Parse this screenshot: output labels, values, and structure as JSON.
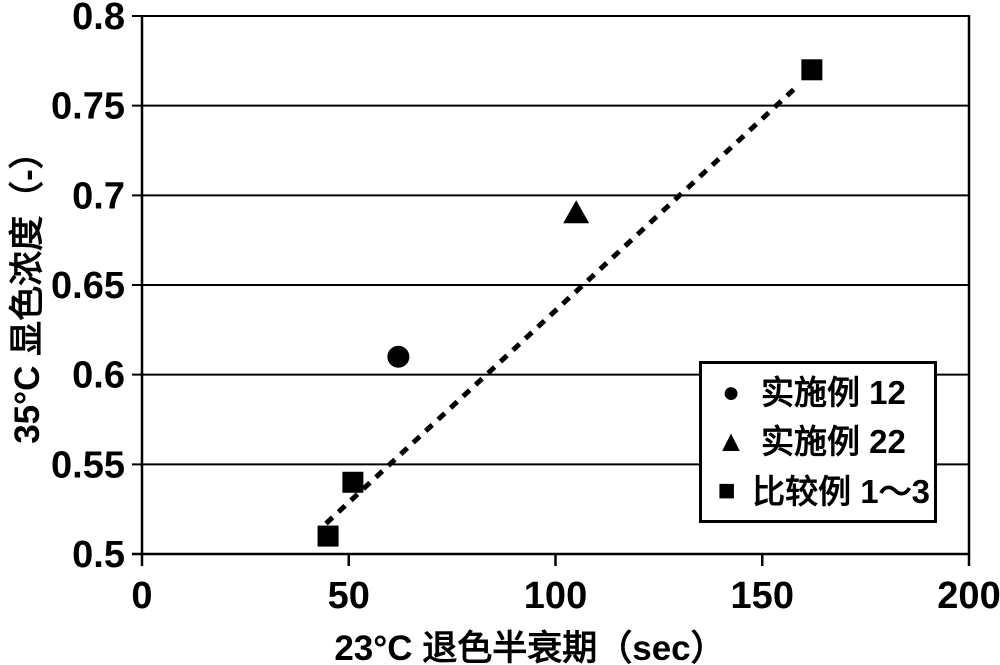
{
  "chart_data": {
    "type": "scatter",
    "title": "",
    "xlabel": "23°C 退色半衰期（sec）",
    "ylabel": "35°C 显色浓度（-）",
    "xlim": [
      0,
      200
    ],
    "ylim": [
      0.5,
      0.8
    ],
    "x_ticks": [
      {
        "value": 0,
        "label": "0"
      },
      {
        "value": 50,
        "label": "50"
      },
      {
        "value": 100,
        "label": "100"
      },
      {
        "value": 150,
        "label": "150"
      },
      {
        "value": 200,
        "label": "200"
      }
    ],
    "y_ticks": [
      {
        "value": 0.5,
        "label": "0.5"
      },
      {
        "value": 0.55,
        "label": "0.55"
      },
      {
        "value": 0.6,
        "label": "0.6"
      },
      {
        "value": 0.65,
        "label": "0.65"
      },
      {
        "value": 0.7,
        "label": "0.7"
      },
      {
        "value": 0.75,
        "label": "0.75"
      },
      {
        "value": 0.8,
        "label": "0.8"
      }
    ],
    "grid": "horizontal-lines-only",
    "series": [
      {
        "name": "实施例 12",
        "marker": "circle",
        "points": [
          [
            62,
            0.61
          ]
        ]
      },
      {
        "name": "实施例 22",
        "marker": "triangle",
        "points": [
          [
            105,
            0.69
          ]
        ]
      },
      {
        "name": "比较例 1～3",
        "marker": "square",
        "points": [
          [
            45,
            0.51
          ],
          [
            51,
            0.54
          ],
          [
            162,
            0.77
          ]
        ]
      }
    ],
    "trendline": {
      "style": "dashed",
      "x1": 44.5,
      "y1": 0.517,
      "x2": 159,
      "y2": 0.762
    },
    "legend": {
      "position": "inside-right",
      "items": [
        {
          "glyph": "●",
          "marker": "circle",
          "label": "实施例 12"
        },
        {
          "glyph": "▲",
          "marker": "triangle",
          "label": "实施例 22"
        },
        {
          "glyph": "■",
          "marker": "square",
          "label": "比较例 1～3"
        }
      ]
    },
    "colors": {
      "foreground": "#000000",
      "background": "#ffffff"
    }
  }
}
